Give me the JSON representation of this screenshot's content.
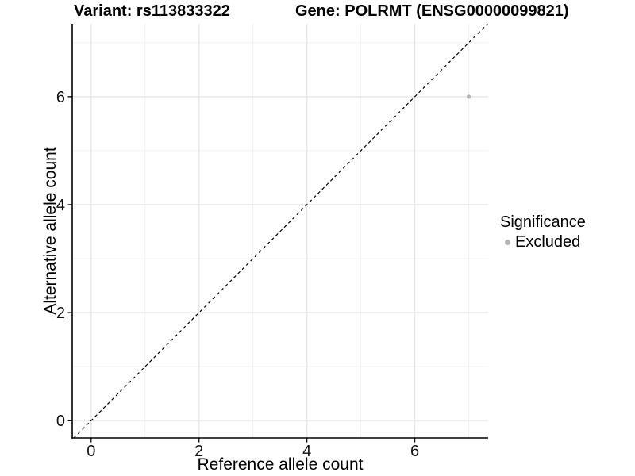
{
  "figure": {
    "background": "#ffffff"
  },
  "chart_data": {
    "type": "scatter",
    "title_left": "Variant: rs113833322",
    "title_right": "Gene: POLRMT (ENSG00000099821)",
    "xlabel": "Reference allele count",
    "ylabel": "Alternative allele count",
    "xlim": [
      -0.35,
      7.36
    ],
    "ylim": [
      -0.32,
      7.35
    ],
    "x_major_ticks": [
      0,
      2,
      4,
      6
    ],
    "y_major_ticks": [
      0,
      2,
      4,
      6
    ],
    "x_minor_ticks": [
      1,
      3,
      5,
      7
    ],
    "y_minor_ticks": [
      1,
      3,
      5,
      7
    ],
    "grid": "major-and-minor",
    "reference_line": {
      "kind": "identity y=x",
      "style": "dashed",
      "color": "#000000"
    },
    "series": [
      {
        "name": "Excluded",
        "color": "#b5b5b5",
        "points": [
          {
            "x": 7,
            "y": 6
          }
        ]
      }
    ],
    "legend": {
      "title": "Significance",
      "position": "right",
      "items": [
        {
          "label": "Excluded",
          "color": "#b5b5b5"
        }
      ]
    },
    "colors": {
      "major_grid": "#e7e7e7",
      "minor_grid": "#f0f0f0",
      "axis_line": "#000000"
    }
  }
}
